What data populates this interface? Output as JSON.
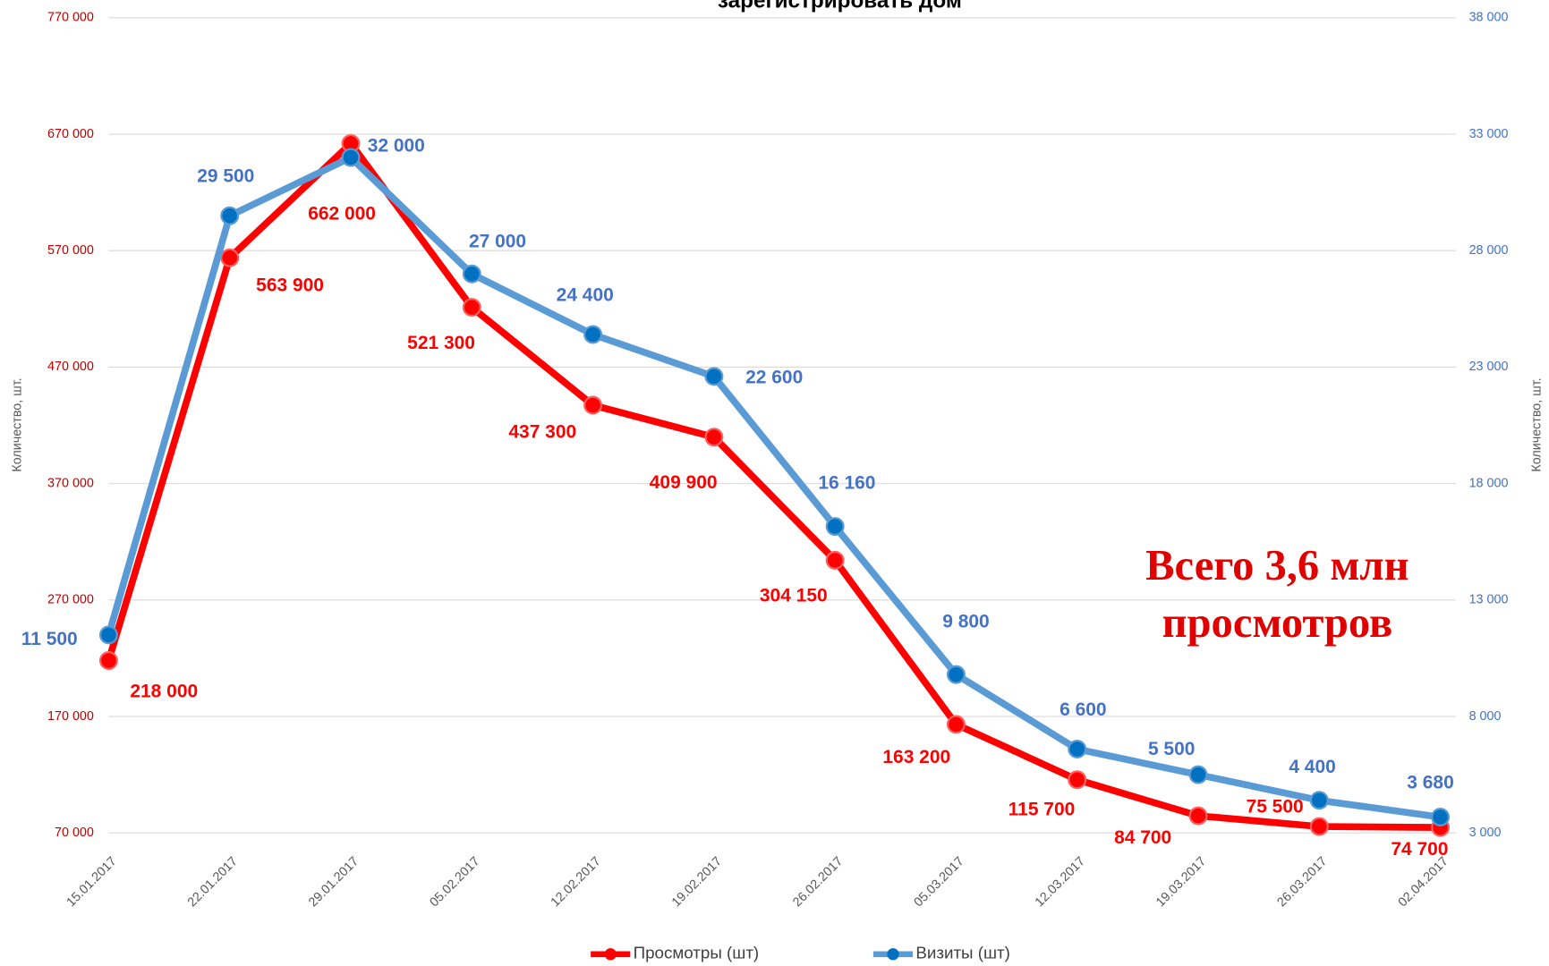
{
  "chart_data": {
    "type": "line",
    "title": "зарегистрировать дом",
    "categories": [
      "15.01.2017",
      "22.01.2017",
      "29.01.2017",
      "05.02.2017",
      "12.02.2017",
      "19.02.2017",
      "26.02.2017",
      "05.03.2017",
      "12.03.2017",
      "19.03.2017",
      "26.03.2017",
      "02.04.2017"
    ],
    "series": [
      {
        "name": "Просмотры (шт)",
        "color": "#ff0000",
        "axis": "y",
        "values": [
          218000,
          563900,
          662000,
          521300,
          437300,
          409900,
          304150,
          163200,
          115700,
          84700,
          75500,
          74700
        ],
        "value_labels": [
          "218 000",
          "563 900",
          "662 000",
          "521 300",
          "437 300",
          "409 900",
          "304 150",
          "163 200",
          "115 700",
          "84 700",
          "75 500",
          "74 700"
        ]
      },
      {
        "name": "Визиты (шт)",
        "color": "#5b9bd5",
        "axis": "y2",
        "values": [
          11500,
          29500,
          32000,
          27000,
          24400,
          22600,
          16160,
          9800,
          6600,
          5500,
          4400,
          3680
        ],
        "value_labels": [
          "11 500",
          "29 500",
          "32 000",
          "27 000",
          "24 400",
          "22 600",
          "16 160",
          "9 800",
          "6 600",
          "5 500",
          "4 400",
          "3 680"
        ]
      }
    ],
    "ylim": [
      70000,
      770000
    ],
    "yticks": [
      {
        "value": 70000,
        "label": "70 000"
      },
      {
        "value": 170000,
        "label": "170 000"
      },
      {
        "value": 270000,
        "label": "270 000"
      },
      {
        "value": 370000,
        "label": "370 000"
      },
      {
        "value": 470000,
        "label": "470 000"
      },
      {
        "value": 570000,
        "label": "570 000"
      },
      {
        "value": 670000,
        "label": "670 000"
      },
      {
        "value": 770000,
        "label": "770 000"
      }
    ],
    "y2lim": [
      3000,
      38000
    ],
    "y2ticks": [
      {
        "value": 3000,
        "label": "3 000"
      },
      {
        "value": 8000,
        "label": "8 000"
      },
      {
        "value": 13000,
        "label": "13 000"
      },
      {
        "value": 18000,
        "label": "18 000"
      },
      {
        "value": 23000,
        "label": "23 000"
      },
      {
        "value": 28000,
        "label": "28 000"
      },
      {
        "value": 33000,
        "label": "33 000"
      },
      {
        "value": 38000,
        "label": "38 000"
      }
    ],
    "ylabel": "Количество, шт.",
    "y2label": "Количество, шт.",
    "annotation": [
      "Всего 3,6 млн",
      "просмотров"
    ],
    "grid": true,
    "legend": "bottom"
  }
}
